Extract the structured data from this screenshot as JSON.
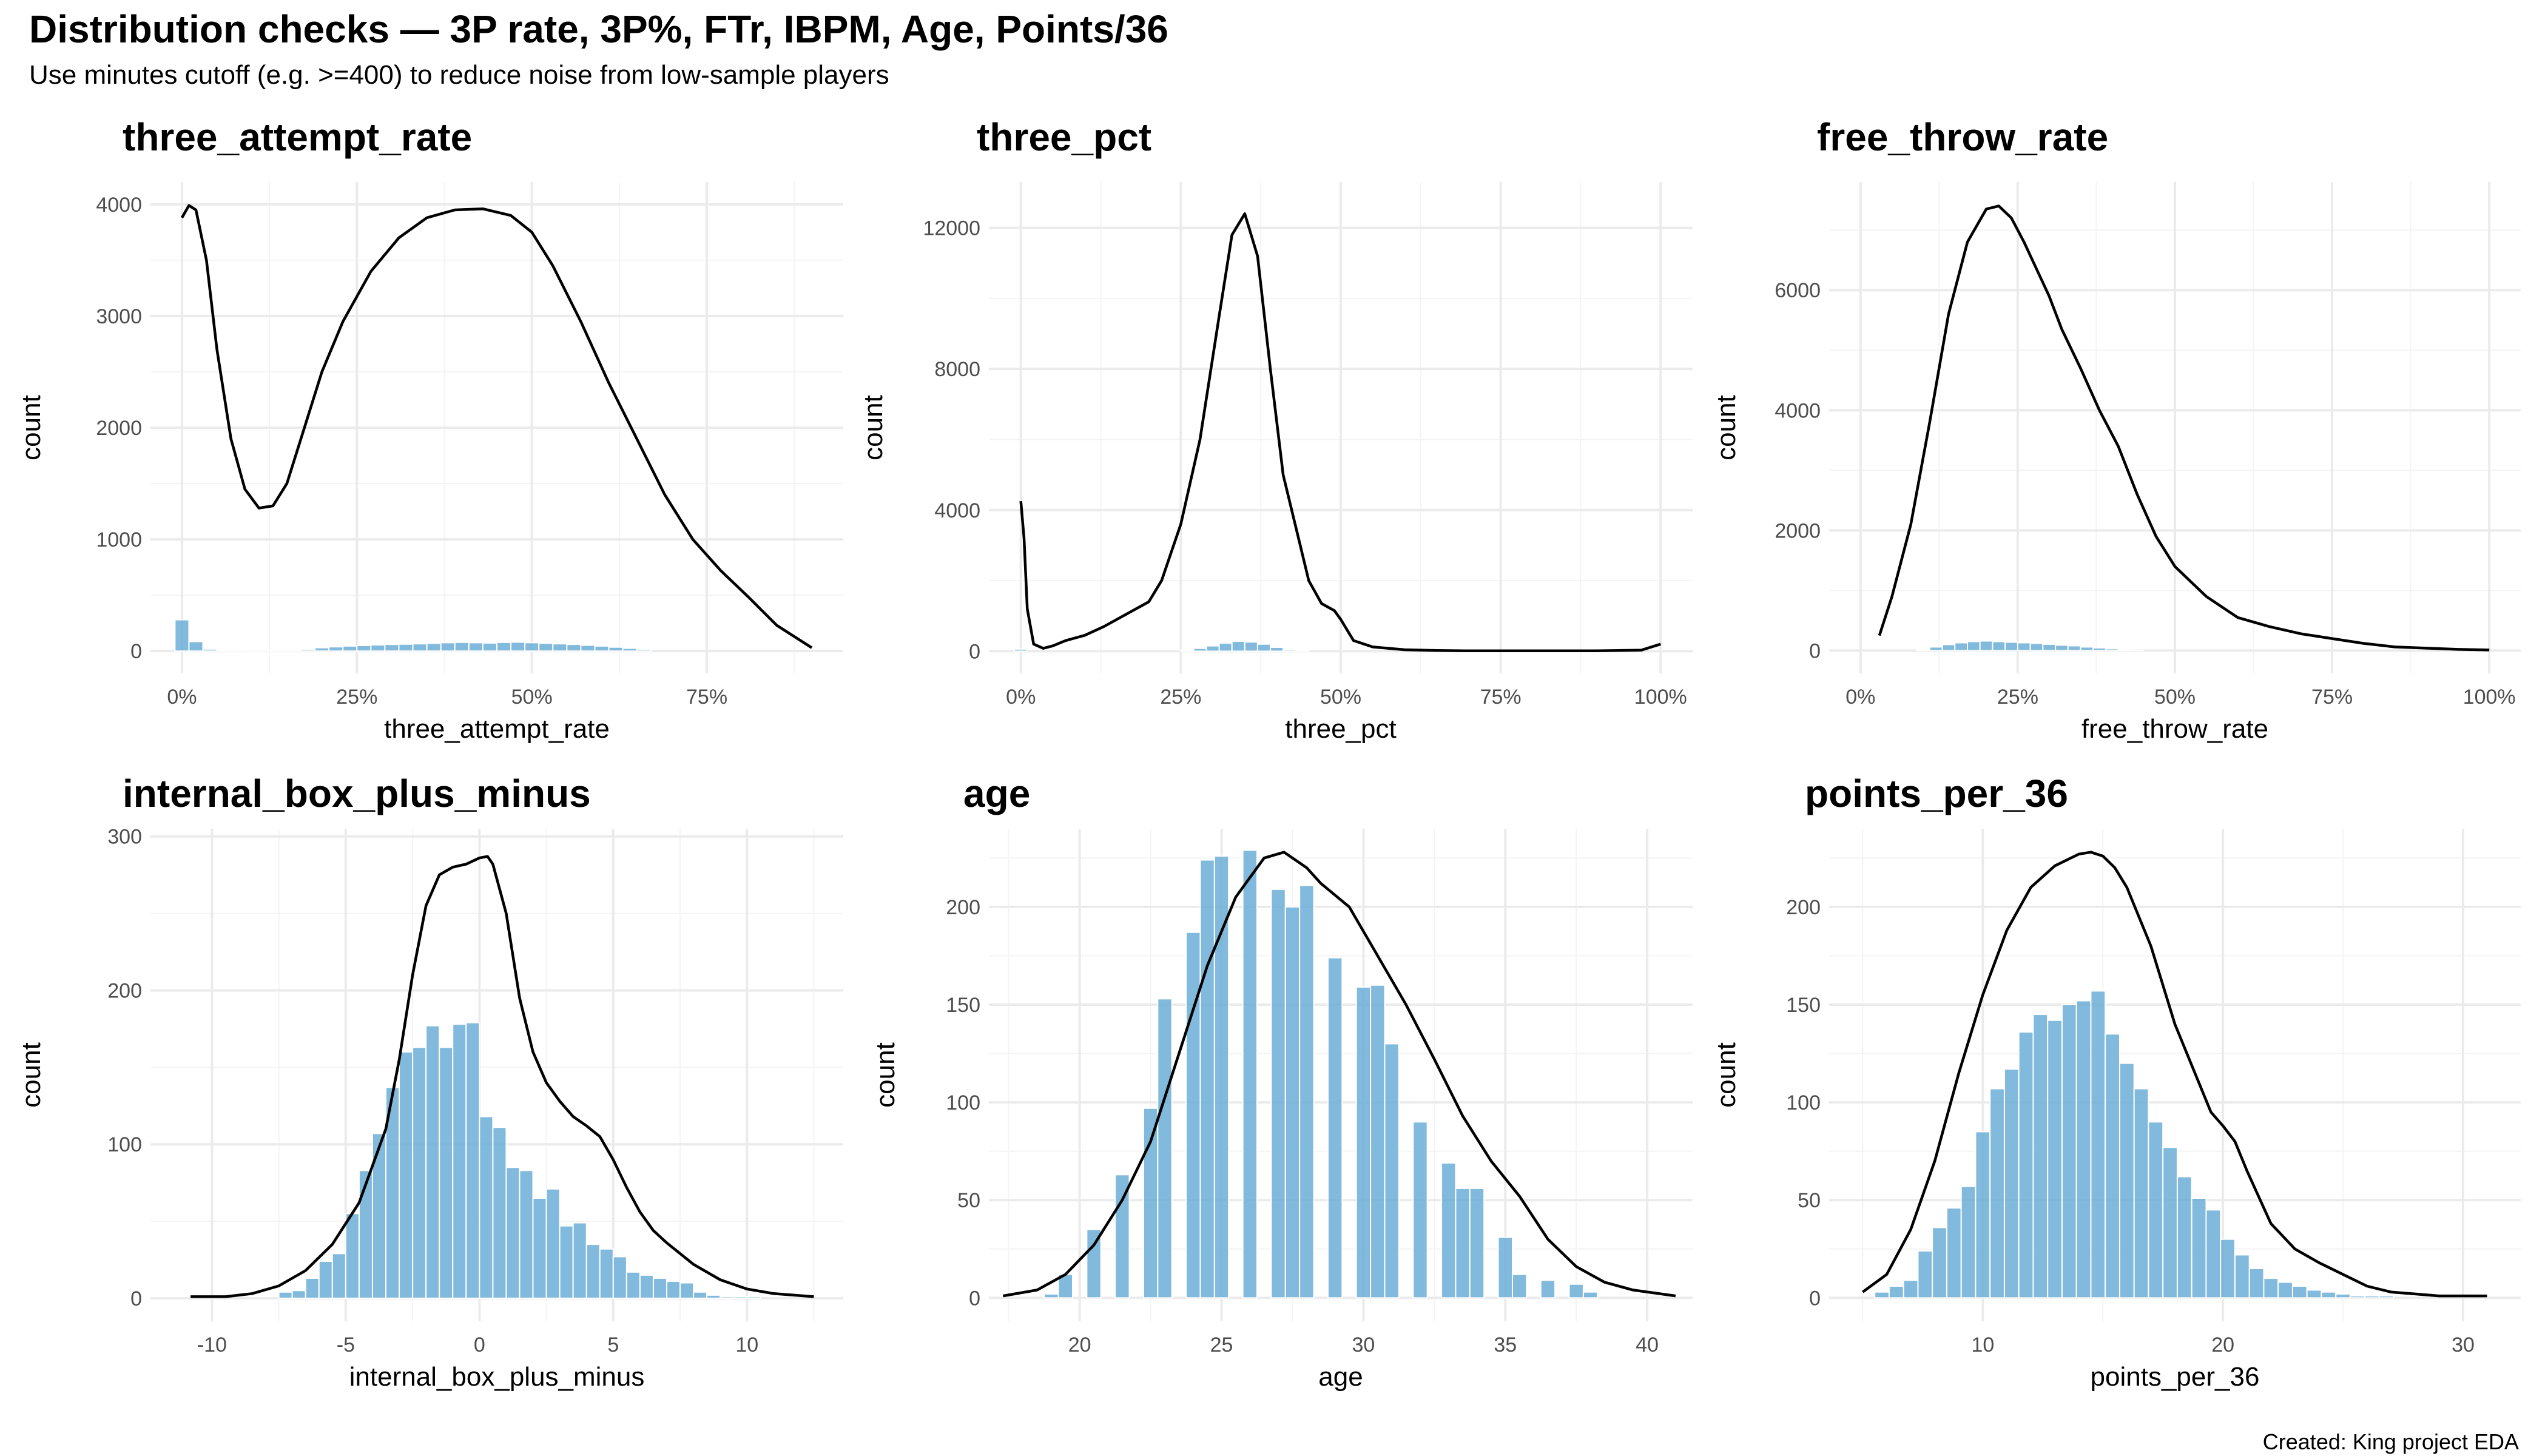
{
  "title": "Distribution checks — 3P rate, 3P%, FTr, IBPM, Age, Points/36",
  "subtitle": "Use minutes cutoff (e.g. >=400) to reduce noise from low-sample players",
  "caption": "Created: King project EDA",
  "colors": {
    "bar": "#6baed6",
    "density": "#000000",
    "grid": "#ebebeb"
  },
  "chart_data": [
    {
      "type": "bar",
      "title": "three_attempt_rate",
      "xlabel": "three_attempt_rate",
      "ylabel": "count",
      "xlim": [
        -0.045,
        0.945
      ],
      "ylim": [
        -200,
        4200
      ],
      "x_ticks": [
        0,
        0.25,
        0.5,
        0.75
      ],
      "x_tick_labels": [
        "0%",
        "25%",
        "50%",
        "75%"
      ],
      "y_ticks": [
        0,
        1000,
        2000,
        3000,
        4000
      ],
      "y_tick_labels": [
        "0",
        "1000",
        "2000",
        "3000",
        "4000"
      ],
      "grid": true,
      "series": [
        {
          "kind": "histogram",
          "bin_width": 0.02,
          "x": [
            0,
            0.02,
            0.04,
            0.06,
            0.08,
            0.1,
            0.12,
            0.14,
            0.16,
            0.18,
            0.2,
            0.22,
            0.24,
            0.26,
            0.28,
            0.3,
            0.32,
            0.34,
            0.36,
            0.38,
            0.4,
            0.42,
            0.44,
            0.46,
            0.48,
            0.5,
            0.52,
            0.54,
            0.56,
            0.58,
            0.6,
            0.62,
            0.64,
            0.66
          ],
          "y": [
            280,
            85,
            18,
            8,
            5,
            4,
            4,
            5,
            8,
            15,
            30,
            38,
            45,
            50,
            55,
            60,
            62,
            65,
            70,
            75,
            78,
            75,
            72,
            78,
            80,
            75,
            70,
            65,
            60,
            52,
            45,
            35,
            25,
            15
          ]
        },
        {
          "kind": "density",
          "x": [
            0,
            0.01,
            0.02,
            0.035,
            0.05,
            0.07,
            0.09,
            0.11,
            0.13,
            0.15,
            0.17,
            0.2,
            0.23,
            0.27,
            0.31,
            0.35,
            0.39,
            0.43,
            0.47,
            0.5,
            0.53,
            0.57,
            0.61,
            0.65,
            0.69,
            0.73,
            0.77,
            0.81,
            0.85,
            0.9
          ],
          "y": [
            3880,
            3990,
            3950,
            3500,
            2700,
            1900,
            1450,
            1280,
            1300,
            1500,
            1900,
            2500,
            2950,
            3400,
            3700,
            3880,
            3950,
            3960,
            3900,
            3750,
            3450,
            2950,
            2400,
            1900,
            1400,
            1000,
            720,
            480,
            230,
            30
          ]
        }
      ]
    },
    {
      "type": "bar",
      "title": "three_pct",
      "xlabel": "three_pct",
      "ylabel": "count",
      "xlim": [
        -0.05,
        1.05
      ],
      "ylim": [
        -630,
        13300
      ],
      "x_ticks": [
        0,
        0.25,
        0.5,
        0.75,
        1
      ],
      "x_tick_labels": [
        "0%",
        "25%",
        "50%",
        "75%",
        "100%"
      ],
      "y_ticks": [
        0,
        4000,
        8000,
        12000
      ],
      "y_tick_labels": [
        "0",
        "4000",
        "8000",
        "12000"
      ],
      "grid": true,
      "series": [
        {
          "kind": "histogram",
          "bin_width": 0.02,
          "x": [
            0,
            0.26,
            0.28,
            0.3,
            0.32,
            0.34,
            0.36,
            0.38,
            0.4,
            0.42,
            0.44
          ],
          "y": [
            60,
            30,
            80,
            150,
            230,
            280,
            260,
            200,
            110,
            40,
            10
          ]
        },
        {
          "kind": "density",
          "x": [
            0,
            0.005,
            0.01,
            0.02,
            0.035,
            0.05,
            0.07,
            0.1,
            0.13,
            0.16,
            0.2,
            0.22,
            0.25,
            0.28,
            0.31,
            0.33,
            0.35,
            0.37,
            0.39,
            0.41,
            0.43,
            0.45,
            0.47,
            0.49,
            0.5,
            0.52,
            0.55,
            0.6,
            0.65,
            0.7,
            0.8,
            0.9,
            0.97,
            1
          ],
          "y": [
            4250,
            3200,
            1200,
            200,
            80,
            150,
            300,
            450,
            700,
            1000,
            1400,
            2000,
            3600,
            6000,
            9500,
            11800,
            12400,
            11200,
            8000,
            5000,
            3500,
            2000,
            1350,
            1150,
            900,
            300,
            120,
            40,
            20,
            10,
            10,
            10,
            30,
            200
          ]
        }
      ]
    },
    {
      "type": "bar",
      "title": "free_throw_rate",
      "xlabel": "free_throw_rate",
      "ylabel": "count",
      "xlim": [
        -0.05,
        1.05
      ],
      "ylim": [
        -380,
        7800
      ],
      "x_ticks": [
        0,
        0.25,
        0.5,
        0.75,
        1
      ],
      "x_tick_labels": [
        "0%",
        "25%",
        "50%",
        "75%",
        "100%"
      ],
      "y_ticks": [
        0,
        2000,
        4000,
        6000
      ],
      "y_tick_labels": [
        "0",
        "2000",
        "4000",
        "6000"
      ],
      "grid": true,
      "series": [
        {
          "kind": "histogram",
          "bin_width": 0.02,
          "x": [
            0.1,
            0.12,
            0.14,
            0.16,
            0.18,
            0.2,
            0.22,
            0.24,
            0.26,
            0.28,
            0.3,
            0.32,
            0.34,
            0.36,
            0.38,
            0.4,
            0.42,
            0.44
          ],
          "y": [
            20,
            60,
            100,
            130,
            150,
            160,
            150,
            140,
            130,
            120,
            105,
            90,
            80,
            60,
            45,
            30,
            15,
            5
          ]
        },
        {
          "kind": "density",
          "x": [
            0.03,
            0.05,
            0.08,
            0.11,
            0.14,
            0.17,
            0.2,
            0.22,
            0.24,
            0.26,
            0.28,
            0.3,
            0.32,
            0.35,
            0.38,
            0.41,
            0.44,
            0.47,
            0.5,
            0.55,
            0.6,
            0.65,
            0.7,
            0.75,
            0.8,
            0.85,
            0.9,
            0.95,
            1
          ],
          "y": [
            250,
            900,
            2100,
            3800,
            5600,
            6800,
            7350,
            7400,
            7200,
            6800,
            6350,
            5900,
            5350,
            4700,
            4000,
            3400,
            2600,
            1900,
            1400,
            900,
            550,
            400,
            280,
            200,
            120,
            60,
            40,
            20,
            10
          ]
        }
      ]
    },
    {
      "type": "bar",
      "title": "internal_box_plus_minus",
      "xlabel": "internal_box_plus_minus",
      "ylabel": "count",
      "xlim": [
        -12.3,
        13.6
      ],
      "ylim": [
        -15,
        305
      ],
      "x_ticks": [
        -10,
        -5,
        0,
        5,
        10
      ],
      "x_tick_labels": [
        "-10",
        "-5",
        "0",
        "5",
        "10"
      ],
      "y_ticks": [
        0,
        100,
        200,
        300
      ],
      "y_tick_labels": [
        "0",
        "100",
        "200",
        "300"
      ],
      "grid": true,
      "series": [
        {
          "kind": "histogram",
          "bin_width": 0.5,
          "x": [
            -7.25,
            -6.75,
            -6.25,
            -5.75,
            -5.25,
            -4.75,
            -4.25,
            -3.75,
            -3.25,
            -2.75,
            -2.25,
            -1.75,
            -1.25,
            -0.75,
            -0.25,
            0.25,
            0.75,
            1.25,
            1.75,
            2.25,
            2.75,
            3.25,
            3.75,
            4.25,
            4.75,
            5.25,
            5.75,
            6.25,
            6.75,
            7.25,
            7.75,
            8.25,
            8.75,
            9.25,
            9.75,
            10.25
          ],
          "y": [
            4,
            5,
            13,
            24,
            29,
            55,
            83,
            107,
            137,
            160,
            163,
            177,
            163,
            178,
            179,
            118,
            111,
            85,
            83,
            65,
            71,
            47,
            49,
            35,
            32,
            27,
            17,
            15,
            13,
            11,
            10,
            4,
            2,
            1,
            1,
            1
          ]
        },
        {
          "kind": "density",
          "x": [
            -10.8,
            -9.5,
            -8.5,
            -7.5,
            -6.5,
            -5.5,
            -4.5,
            -3.5,
            -3,
            -2.5,
            -2,
            -1.5,
            -1,
            -0.5,
            0,
            0.3,
            0.5,
            1,
            1.5,
            2,
            2.5,
            3,
            3.5,
            4,
            4.5,
            5,
            5.5,
            6,
            6.5,
            7,
            8,
            9,
            10,
            11,
            12.5
          ],
          "y": [
            1,
            1,
            3,
            8,
            18,
            35,
            62,
            110,
            155,
            210,
            255,
            275,
            280,
            282,
            286,
            287,
            282,
            250,
            195,
            160,
            140,
            128,
            118,
            112,
            105,
            90,
            72,
            56,
            44,
            36,
            22,
            12,
            6,
            3,
            1
          ]
        }
      ]
    },
    {
      "type": "bar",
      "title": "age",
      "xlabel": "age",
      "ylabel": "count",
      "xlim": [
        16.8,
        41.6
      ],
      "ylim": [
        -12,
        240
      ],
      "x_ticks": [
        20,
        25,
        30,
        35,
        40
      ],
      "x_tick_labels": [
        "20",
        "25",
        "30",
        "35",
        "40"
      ],
      "y_ticks": [
        0,
        50,
        100,
        150,
        200
      ],
      "y_tick_labels": [
        "0",
        "50",
        "100",
        "150",
        "200"
      ],
      "grid": true,
      "series": [
        {
          "kind": "histogram",
          "bin_width": 0.5,
          "x": [
            19,
            19.5,
            20.5,
            21.5,
            22.5,
            23,
            24,
            24.5,
            25,
            26,
            27,
            27.5,
            28,
            29,
            30,
            30.5,
            31,
            32,
            33,
            33.5,
            34,
            35,
            35.5,
            36.5,
            37.5,
            38
          ],
          "y": [
            2,
            12,
            35,
            63,
            97,
            153,
            187,
            224,
            226,
            229,
            209,
            200,
            211,
            174,
            159,
            160,
            130,
            90,
            69,
            56,
            56,
            31,
            12,
            9,
            7,
            3
          ]
        },
        {
          "kind": "density",
          "x": [
            17.3,
            18.5,
            19.5,
            20.5,
            21.5,
            22.5,
            23.5,
            24.5,
            25.5,
            26.5,
            27.2,
            28,
            28.5,
            29.5,
            30.5,
            31.5,
            32.5,
            33.5,
            34.5,
            35.5,
            36.5,
            37.5,
            38.5,
            39.5,
            41
          ],
          "y": [
            1,
            4,
            12,
            27,
            50,
            80,
            125,
            170,
            205,
            225,
            228,
            220,
            212,
            200,
            175,
            150,
            122,
            93,
            70,
            52,
            30,
            16,
            8,
            4,
            1
          ]
        }
      ]
    },
    {
      "type": "bar",
      "title": "points_per_36",
      "xlabel": "points_per_36",
      "ylabel": "count",
      "xlim": [
        3.6,
        32.4
      ],
      "ylim": [
        -12,
        240
      ],
      "x_ticks": [
        10,
        20,
        30
      ],
      "x_tick_labels": [
        "10",
        "20",
        "30"
      ],
      "y_ticks": [
        0,
        50,
        100,
        150,
        200
      ],
      "y_tick_labels": [
        "0",
        "50",
        "100",
        "150",
        "200"
      ],
      "grid": true,
      "series": [
        {
          "kind": "histogram",
          "bin_width": 0.6,
          "x": [
            5.8,
            6.4,
            7,
            7.6,
            8.2,
            8.8,
            9.4,
            10,
            10.6,
            11.2,
            11.8,
            12.4,
            13,
            13.6,
            14.2,
            14.8,
            15.4,
            16,
            16.6,
            17.2,
            17.8,
            18.4,
            19,
            19.6,
            20.2,
            20.8,
            21.4,
            22,
            22.6,
            23.2,
            23.8,
            24.4,
            25,
            25.6,
            26.2,
            26.8
          ],
          "y": [
            3,
            6,
            9,
            24,
            36,
            46,
            57,
            85,
            107,
            117,
            136,
            145,
            142,
            150,
            152,
            157,
            135,
            120,
            107,
            90,
            77,
            62,
            51,
            45,
            30,
            22,
            15,
            10,
            8,
            6,
            4,
            3,
            2,
            1,
            1,
            1
          ]
        },
        {
          "kind": "density",
          "x": [
            5,
            6,
            7,
            8,
            9,
            10,
            11,
            12,
            13,
            14,
            14.5,
            15,
            15.5,
            16,
            17,
            18,
            19,
            19.5,
            20,
            20.5,
            21,
            22,
            23,
            24,
            25,
            26,
            27,
            28,
            29,
            31
          ],
          "y": [
            3,
            12,
            35,
            70,
            115,
            155,
            188,
            210,
            221,
            227,
            228,
            226,
            220,
            210,
            180,
            140,
            110,
            95,
            88,
            80,
            65,
            38,
            25,
            18,
            12,
            6,
            3,
            2,
            1,
            1
          ]
        }
      ]
    }
  ]
}
